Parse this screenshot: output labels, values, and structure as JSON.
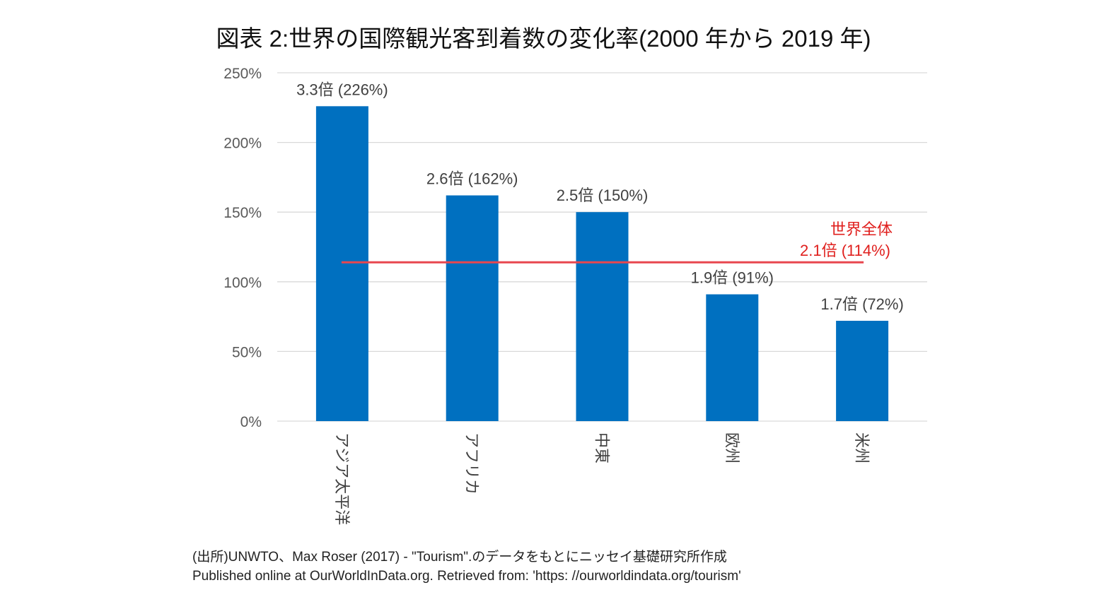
{
  "chart_data": {
    "type": "bar",
    "title": "図表 2:世界の国際観光客到着数の変化率(2000 年から 2019 年)",
    "xlabel": "",
    "ylabel": "",
    "categories": [
      "アジア太平洋",
      "アフリカ",
      "中東",
      "欧州",
      "米州"
    ],
    "values": [
      226,
      162,
      150,
      91,
      72
    ],
    "value_unit": "%",
    "data_labels": [
      "3.3倍 (226%)",
      "2.6倍 (162%)",
      "2.5倍 (150%)",
      "1.9倍 (91%)",
      "1.7倍 (72%)"
    ],
    "ylim": [
      0,
      250
    ],
    "yticks": [
      0,
      50,
      100,
      150,
      200,
      250
    ],
    "ytick_labels": [
      "0%",
      "50%",
      "100%",
      "150%",
      "200%",
      "250%"
    ],
    "grid": true,
    "legend": "none",
    "bar_color": "#0070C0",
    "reference_line": {
      "name": "世界全体",
      "value": 114,
      "label_line1": "世界全体",
      "label_line2": "2.1倍 (114%)",
      "line_color": "#E8474F",
      "label_color": "#E0201E"
    }
  },
  "source": {
    "line1": "(出所)UNWTO、Max Roser (2017) - \"Tourism\".のデータをもとにニッセイ基礎研究所作成",
    "line2": "Published online at OurWorldInData.org. Retrieved from: 'https: //ourworldindata.org/tourism'"
  }
}
